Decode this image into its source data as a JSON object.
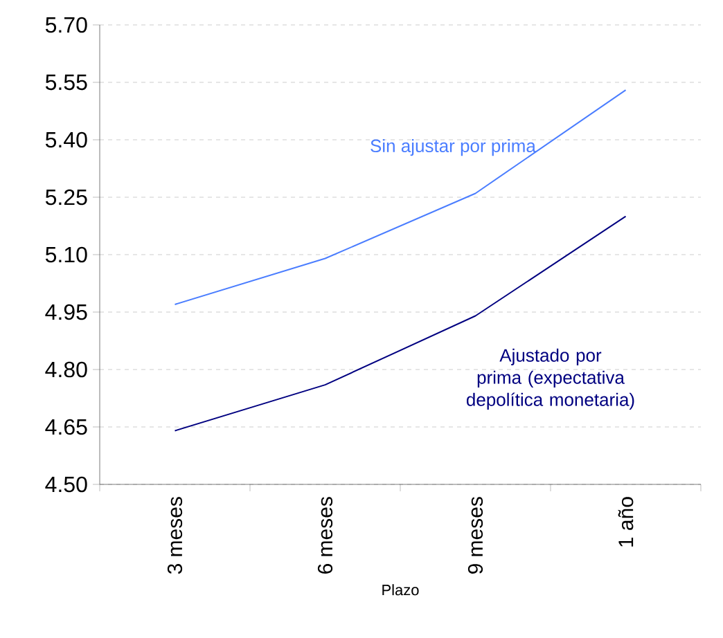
{
  "chart_data": {
    "type": "line",
    "xlabel": "Plazo",
    "categories": [
      "3 meses",
      "6 meses",
      "9 meses",
      "1 año"
    ],
    "series": [
      {
        "name": "Sin ajustar por prima",
        "color": "#4a7dff",
        "values": [
          4.97,
          5.09,
          5.26,
          5.53
        ]
      },
      {
        "name": "Ajustado por prima (expectativa depolítica monetaria)",
        "color": "#000080",
        "values": [
          4.64,
          4.76,
          4.94,
          5.2
        ]
      }
    ],
    "ylim": [
      4.5,
      5.7
    ],
    "yticks": [
      {
        "value": 4.5,
        "label": "4.50"
      },
      {
        "value": 4.65,
        "label": "4.65"
      },
      {
        "value": 4.8,
        "label": "4.80"
      },
      {
        "value": 4.95,
        "label": "4.95"
      },
      {
        "value": 5.1,
        "label": "5.10"
      },
      {
        "value": 5.25,
        "label": "5.25"
      },
      {
        "value": 5.4,
        "label": "5.40"
      },
      {
        "value": 5.55,
        "label": "5.55"
      },
      {
        "value": 5.7,
        "label": "5.70"
      }
    ],
    "grid": "y",
    "legend": false,
    "marker": "none",
    "line_style": "solid"
  }
}
